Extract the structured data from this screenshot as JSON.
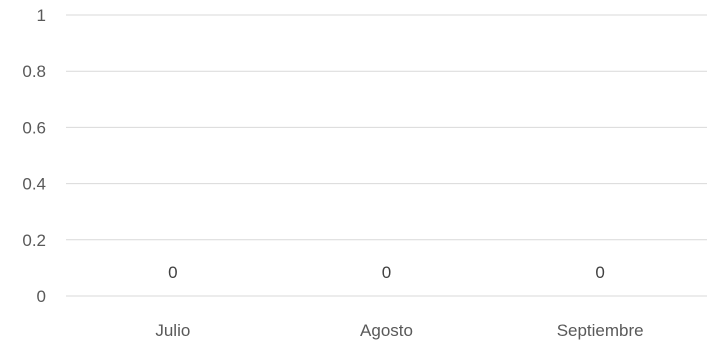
{
  "chart_data": {
    "type": "bar",
    "categories": [
      "Julio",
      "Agosto",
      "Septiembre"
    ],
    "series": [
      {
        "values": [
          0,
          0,
          0
        ]
      }
    ],
    "data_labels": [
      "0",
      "0",
      "0"
    ],
    "yticks": [
      "0",
      "0.2",
      "0.4",
      "0.6",
      "0.8",
      "1"
    ],
    "ylim": [
      0,
      1
    ],
    "grid": true,
    "legend": "none",
    "title": "",
    "xlabel": "",
    "ylabel": "",
    "colors": {
      "gridline": "#d9d9d9",
      "text": "#595959",
      "bar": "#4472c4"
    }
  }
}
